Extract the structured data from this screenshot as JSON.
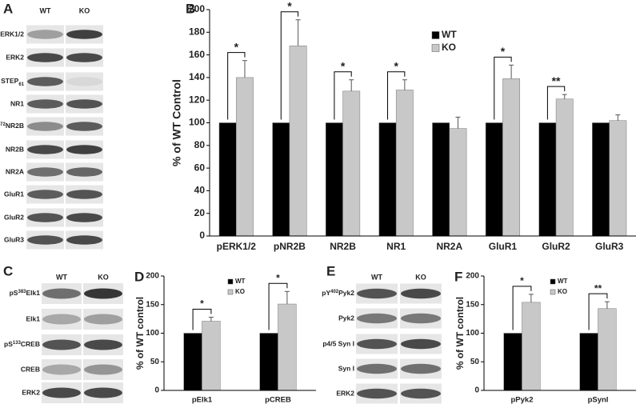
{
  "chart_data": [
    {
      "type": "bar",
      "label": "B",
      "ylabel": "% of WT Control",
      "categories": [
        "pERK1/2",
        "pNR2B",
        "NR2B",
        "NR1",
        "NR2A",
        "GluR1",
        "GluR2",
        "GluR3"
      ],
      "series": [
        {
          "name": "WT",
          "color": "#000000",
          "values": [
            100,
            100,
            100,
            100,
            100,
            100,
            100,
            100
          ]
        },
        {
          "name": "KO",
          "color": "#c8c8c8",
          "values": [
            140,
            168,
            128,
            129,
            95,
            139,
            121,
            102
          ],
          "errors": [
            15,
            23,
            10,
            9,
            10,
            12,
            4,
            5
          ]
        }
      ],
      "significance": [
        "*",
        "*",
        "*",
        "*",
        null,
        "*",
        "**",
        null
      ],
      "ylim": [
        0,
        200
      ],
      "yticks": [
        0,
        20,
        40,
        60,
        80,
        100,
        120,
        140,
        160,
        180,
        200
      ]
    },
    {
      "type": "bar",
      "label": "D",
      "ylabel": "% of WT control",
      "categories": [
        "pElk1",
        "pCREB"
      ],
      "series": [
        {
          "name": "WT",
          "color": "#000000",
          "values": [
            100,
            100
          ]
        },
        {
          "name": "KO",
          "color": "#c8c8c8",
          "values": [
            121,
            151
          ],
          "errors": [
            7,
            22
          ]
        }
      ],
      "significance": [
        "*",
        "*"
      ],
      "ylim": [
        0,
        200
      ],
      "yticks": [
        0,
        50,
        100,
        150,
        200
      ]
    },
    {
      "type": "bar",
      "label": "F",
      "ylabel": "% of WT control",
      "categories": [
        "pPyk2",
        "pSynI"
      ],
      "series": [
        {
          "name": "WT",
          "color": "#000000",
          "values": [
            100,
            100
          ]
        },
        {
          "name": "KO",
          "color": "#c8c8c8",
          "values": [
            154,
            143
          ],
          "errors": [
            14,
            12
          ]
        }
      ],
      "significance": [
        "*",
        "**"
      ],
      "ylim": [
        0,
        200
      ],
      "yticks": [
        0,
        50,
        100,
        150,
        200
      ]
    }
  ],
  "blots": [
    {
      "label": "A",
      "columns": [
        "WT",
        "KO"
      ],
      "rows": [
        "pERK1/2",
        "ERK2",
        {
          "base": "STEP",
          "sub": "61"
        },
        "NR1",
        {
          "base": "pY",
          "sup": "1472",
          "after": "NR2B"
        },
        "NR2B",
        "NR2A",
        "GluR1",
        "GluR2",
        "GluR3"
      ]
    },
    {
      "label": "C",
      "columns": [
        "WT",
        "KO"
      ],
      "rows": [
        {
          "base": "pS",
          "sup": "383",
          "after": "Elk1"
        },
        "Elk1",
        {
          "base": "pS",
          "sup": "133",
          "after": "CREB"
        },
        "CREB",
        "ERK2"
      ]
    },
    {
      "label": "E",
      "columns": [
        "WT",
        "KO"
      ],
      "rows": [
        {
          "base": "pY",
          "sup": "402",
          "after": "Pyk2"
        },
        "Pyk2",
        "p4/5 Syn I",
        "Syn I",
        "ERK2"
      ]
    }
  ]
}
